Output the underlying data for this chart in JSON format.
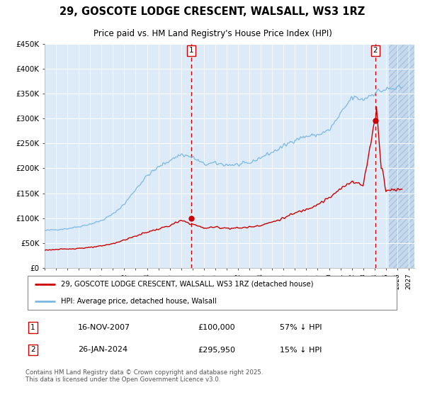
{
  "title": "29, GOSCOTE LODGE CRESCENT, WALSALL, WS3 1RZ",
  "subtitle": "Price paid vs. HM Land Registry's House Price Index (HPI)",
  "ylim": [
    0,
    450000
  ],
  "xlim_start": 1995.0,
  "xlim_end": 2027.5,
  "bg_color": "#ddeaf7",
  "hatch_color": "#c5d8ec",
  "grid_color": "#ffffff",
  "hpi_color": "#7ab8e0",
  "price_color": "#cc0000",
  "marker1_x": 2007.88,
  "marker1_y": 100000,
  "marker2_x": 2024.07,
  "marker2_y": 295950,
  "marker1_label": "16-NOV-2007",
  "marker1_price": "£100,000",
  "marker1_hpi": "57% ↓ HPI",
  "marker2_label": "26-JAN-2024",
  "marker2_price": "£295,950",
  "marker2_hpi": "15% ↓ HPI",
  "legend1": "29, GOSCOTE LODGE CRESCENT, WALSALL, WS3 1RZ (detached house)",
  "legend2": "HPI: Average price, detached house, Walsall",
  "footer": "Contains HM Land Registry data © Crown copyright and database right 2025.\nThis data is licensed under the Open Government Licence v3.0.",
  "hpi_base_values": [
    75000,
    77000,
    79000,
    83000,
    88000,
    95000,
    108000,
    128000,
    158000,
    185000,
    202000,
    216000,
    228000,
    222000,
    208000,
    210000,
    207000,
    207000,
    210000,
    222000,
    232000,
    244000,
    258000,
    264000,
    267000,
    276000,
    308000,
    342000,
    338000,
    352000,
    358000,
    360000
  ],
  "hpi_years": [
    1995,
    1996,
    1997,
    1998,
    1999,
    2000,
    2001,
    2002,
    2003,
    2004,
    2005,
    2006,
    2007,
    2008,
    2009,
    2010,
    2011,
    2012,
    2013,
    2014,
    2015,
    2016,
    2017,
    2018,
    2019,
    2020,
    2021,
    2022,
    2023,
    2024,
    2025,
    2026
  ],
  "price_base_values": [
    36000,
    37000,
    38000,
    39500,
    41000,
    44000,
    49000,
    56000,
    64000,
    72000,
    78000,
    85000,
    95000,
    88000,
    80000,
    82000,
    80000,
    80000,
    82000,
    86000,
    92000,
    100000,
    110000,
    118000,
    128000,
    140000,
    158000,
    175000,
    165000,
    295950,
    155000,
    158000
  ],
  "price_years": [
    1995,
    1996,
    1997,
    1998,
    1999,
    2000,
    2001,
    2002,
    2003,
    2004,
    2005,
    2006,
    2007,
    2008,
    2009,
    2010,
    2011,
    2012,
    2013,
    2014,
    2015,
    2016,
    2017,
    2018,
    2019,
    2020,
    2021,
    2022,
    2023,
    2024,
    2025,
    2026
  ]
}
